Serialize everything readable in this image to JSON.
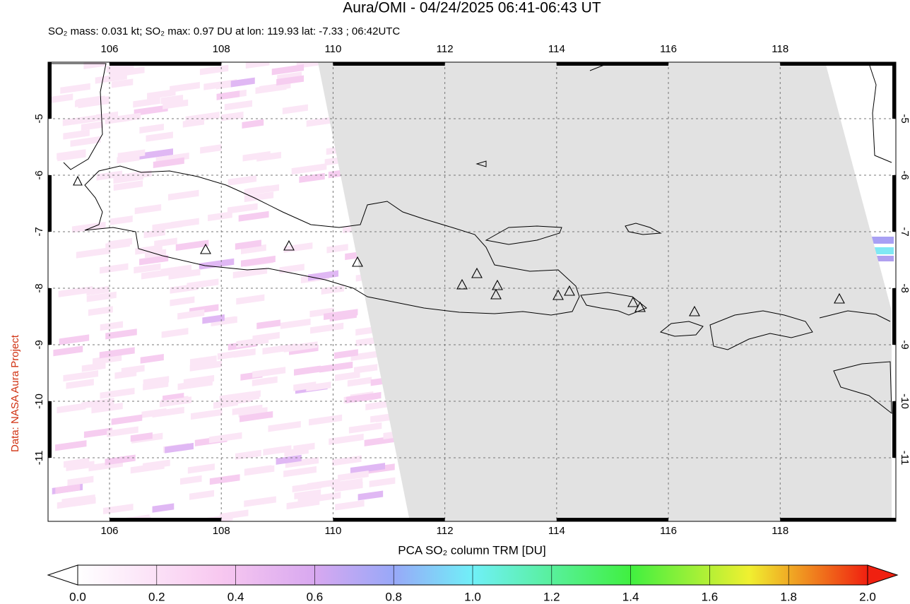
{
  "title": "Aura/OMI - 04/24/2025 06:41-06:43 UT",
  "subtitle": "SO₂ mass: 0.031 kt; SO₂ max: 0.97 DU at lon: 119.93 lat: -7.33 ; 06:42UTC",
  "credit": "Data: NASA Aura Project",
  "map": {
    "lonlim": [
      104.9,
      120.07
    ],
    "latlim": [
      -12.125,
      -4
    ],
    "lonticks": [
      106,
      108,
      110,
      112,
      114,
      116,
      118
    ],
    "latticks": [
      -5,
      -6,
      -7,
      -8,
      -9,
      -10,
      -11
    ]
  },
  "colorbar": {
    "label": "PCA SO₂ column TRM [DU]",
    "lim": [
      0,
      2
    ],
    "ticks": [
      {
        "value": 0,
        "label": "0.0"
      },
      {
        "value": 0.2,
        "label": "0.2"
      },
      {
        "value": 0.4,
        "label": "0.4"
      },
      {
        "value": 0.6,
        "label": "0.6"
      },
      {
        "value": 0.8,
        "label": "0.8"
      },
      {
        "value": 1,
        "label": "1.0"
      },
      {
        "value": 1.2,
        "label": "1.2"
      },
      {
        "value": 1.4,
        "label": "1.4"
      },
      {
        "value": 1.6,
        "label": "1.6"
      },
      {
        "value": 1.8,
        "label": "1.8"
      },
      {
        "value": 2,
        "label": "2.0"
      }
    ]
  }
}
